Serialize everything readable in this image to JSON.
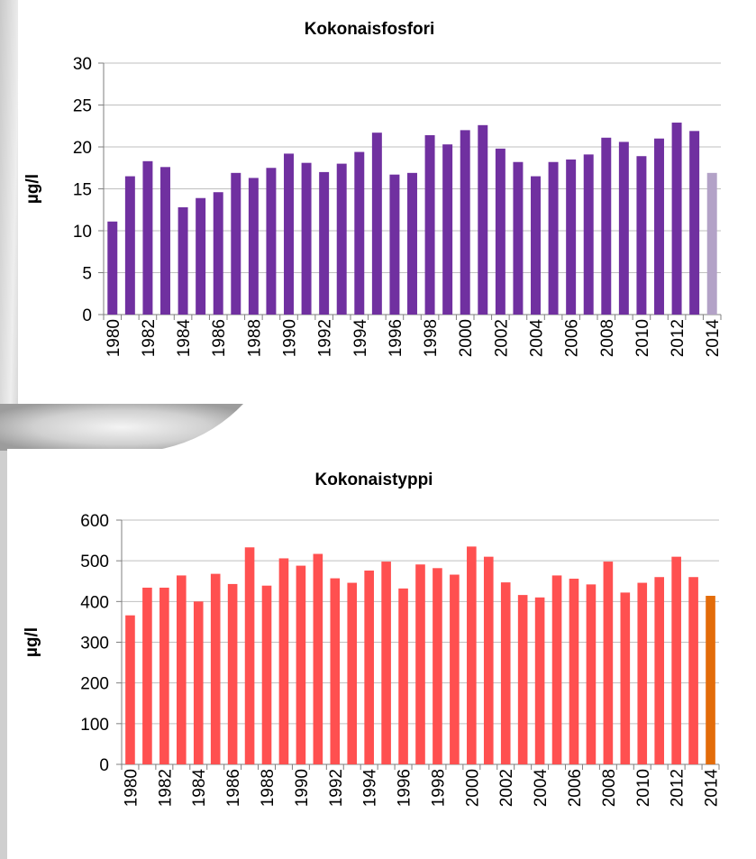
{
  "chart_data": [
    {
      "type": "bar",
      "title": "Kokonaisfosfori",
      "xlabel": "",
      "ylabel": "µg/l",
      "ylim": [
        0,
        30
      ],
      "yticks": [
        0,
        5,
        10,
        15,
        20,
        25,
        30
      ],
      "xtick_labels": [
        "1980",
        "1982",
        "1984",
        "1986",
        "1988",
        "1990",
        "1992",
        "1994",
        "1996",
        "1998",
        "2000",
        "2002",
        "2004",
        "2006",
        "2008",
        "2010",
        "2012",
        "2014"
      ],
      "grid": true,
      "categories": [
        "1980",
        "1981",
        "1982",
        "1983",
        "1984",
        "1985",
        "1986",
        "1987",
        "1988",
        "1989",
        "1990",
        "1991",
        "1992",
        "1993",
        "1994",
        "1995",
        "1996",
        "1997",
        "1998",
        "1999",
        "2000",
        "2001",
        "2002",
        "2003",
        "2004",
        "2005",
        "2006",
        "2007",
        "2008",
        "2009",
        "2010",
        "2011",
        "2012",
        "2013",
        "2014"
      ],
      "values": [
        11.1,
        16.5,
        18.3,
        17.6,
        12.8,
        13.9,
        14.6,
        16.9,
        16.3,
        17.5,
        19.2,
        18.1,
        17.0,
        18.0,
        19.4,
        21.7,
        16.7,
        16.9,
        21.4,
        20.3,
        22.0,
        22.6,
        19.8,
        18.2,
        16.5,
        18.2,
        18.5,
        19.1,
        21.1,
        20.6,
        18.9,
        21.0,
        22.9,
        21.9,
        16.9
      ],
      "colors": {
        "bar": "#7030a0",
        "highlight": "#b3a2c7"
      },
      "highlight_last": true
    },
    {
      "type": "bar",
      "title": "Kokonaistyppi",
      "xlabel": "",
      "ylabel": "µg/l",
      "ylim": [
        0,
        600
      ],
      "yticks": [
        0,
        100,
        200,
        300,
        400,
        500,
        600
      ],
      "xtick_labels": [
        "1980",
        "1982",
        "1984",
        "1986",
        "1988",
        "1990",
        "1992",
        "1994",
        "1996",
        "1998",
        "2000",
        "2002",
        "2004",
        "2006",
        "2008",
        "2010",
        "2012",
        "2014"
      ],
      "grid": true,
      "categories": [
        "1980",
        "1981",
        "1982",
        "1983",
        "1984",
        "1985",
        "1986",
        "1987",
        "1988",
        "1989",
        "1990",
        "1991",
        "1992",
        "1993",
        "1994",
        "1995",
        "1996",
        "1997",
        "1998",
        "1999",
        "2000",
        "2001",
        "2002",
        "2003",
        "2004",
        "2005",
        "2006",
        "2007",
        "2008",
        "2009",
        "2010",
        "2011",
        "2012",
        "2013",
        "2014"
      ],
      "values": [
        366,
        434,
        434,
        464,
        400,
        468,
        443,
        533,
        439,
        506,
        488,
        517,
        457,
        446,
        476,
        498,
        432,
        491,
        482,
        466,
        535,
        510,
        447,
        416,
        410,
        464,
        456,
        442,
        498,
        422,
        446,
        460,
        510,
        460,
        414
      ],
      "colors": {
        "bar": "#ff5050",
        "highlight": "#e36c09"
      },
      "highlight_last": true
    }
  ]
}
